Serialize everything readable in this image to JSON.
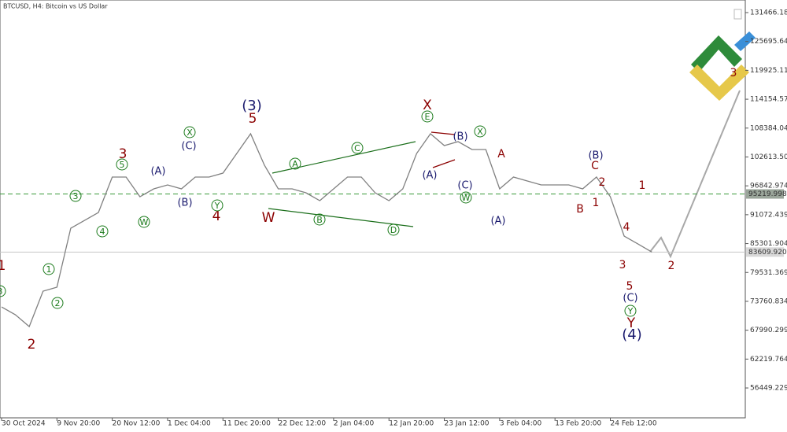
{
  "chart_data": {
    "type": "line",
    "title": "BTCUSD, H4:  Bitcoin vs US Dollar",
    "categories": [
      "30 Oct 2024",
      null,
      null,
      null,
      "9 Nov 20:00",
      null,
      null,
      null,
      "20 Nov 12:00",
      null,
      null,
      null,
      "1 Dec 04:00",
      null,
      null,
      null,
      "11 Dec 20:00",
      null,
      null,
      null,
      "22 Dec 12:00",
      null,
      null,
      null,
      "2 Jan 04:00",
      null,
      null,
      null,
      "12 Jan 20:00",
      null,
      null,
      null,
      "23 Jan 12:00",
      null,
      null,
      null,
      "3 Feb 04:00",
      null,
      null,
      null,
      "13 Feb 20:00",
      null,
      null,
      null,
      "24 Feb 12:00",
      null,
      null,
      null
    ],
    "values": [
      72651,
      71078,
      68719,
      75796,
      76582,
      88377,
      89949,
      91522,
      98599,
      98599,
      94667,
      96240,
      97026,
      96240,
      98599,
      98599,
      99385,
      103316,
      107248,
      100958,
      96240,
      96240,
      95453,
      93881,
      96240,
      98599,
      98599,
      95453,
      93881,
      96240,
      103316,
      107248,
      104889,
      105675,
      104103,
      104103,
      96240,
      98599,
      97812,
      97026,
      97026,
      97026,
      96240,
      98599,
      94667,
      86804,
      85232,
      83610
    ],
    "color": "#808080",
    "ylim": [
      50636,
      133982
    ],
    "yticks": [
      131466.184,
      125695.649,
      119925.114,
      114154.579,
      108384.044,
      102613.509,
      96842.974,
      91072.439,
      85301.904,
      79531.369,
      73760.834,
      67990.299,
      62219.764,
      56449.229
    ],
    "levels": [
      95219.998,
      {
        "value": 83609.92,
        "label": "83609.920"
      }
    ],
    "annotations": [
      "1",
      "2",
      "3",
      "4",
      "5",
      "W",
      "X",
      "Y",
      "C",
      "2",
      "B",
      "1",
      "1",
      "4",
      "3",
      "5",
      "2",
      "A",
      "3",
      "(3)",
      "(C)",
      "(A)",
      "(B)",
      "(A)",
      "(B)",
      "(C)",
      "(A)",
      "(B)",
      "(C)",
      "(4)",
      "1",
      "2",
      "3",
      "4",
      "5",
      "X",
      "W",
      "Y",
      "A",
      "B",
      "C",
      "D",
      "E",
      "W",
      "X",
      "Y",
      "3"
    ]
  }
}
